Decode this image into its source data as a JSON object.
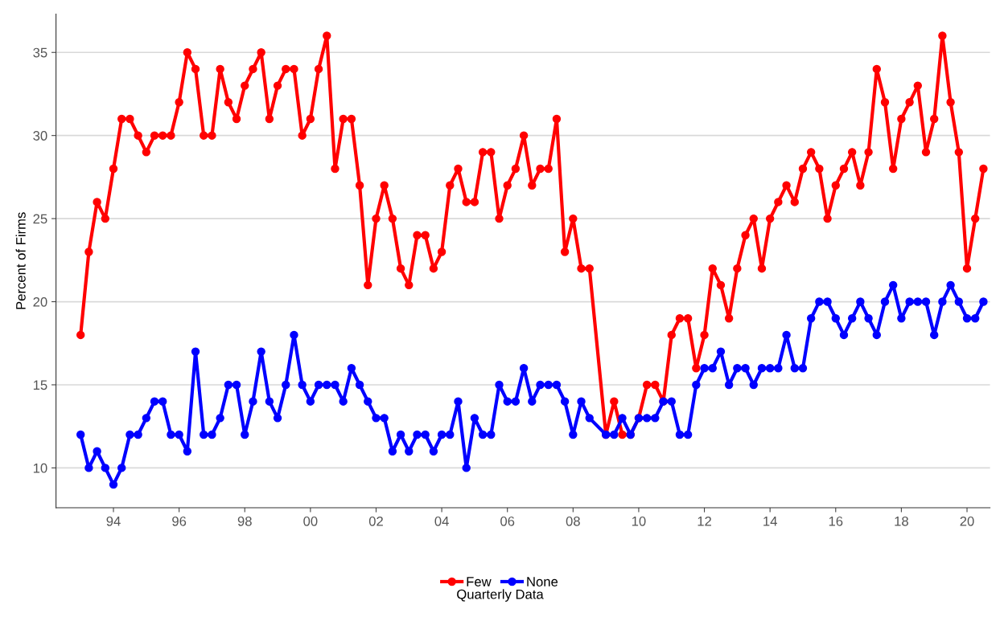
{
  "chart_data": {
    "type": "line",
    "ylabel": "Percent of Firms",
    "annotations": [
      "Quarterly Data"
    ],
    "x": [
      1993,
      1993.25,
      1993.5,
      1993.75,
      1994,
      1994.25,
      1994.5,
      1994.75,
      1995,
      1995.25,
      1995.5,
      1995.75,
      1996,
      1996.25,
      1996.5,
      1996.75,
      1997,
      1997.25,
      1997.5,
      1997.75,
      1998,
      1998.25,
      1998.5,
      1998.75,
      1999,
      1999.25,
      1999.5,
      1999.75,
      2000,
      2000.25,
      2000.5,
      2000.75,
      2001,
      2001.25,
      2001.5,
      2001.75,
      2002,
      2002.25,
      2002.5,
      2002.75,
      2003,
      2003.25,
      2003.5,
      2003.75,
      2004,
      2004.25,
      2004.5,
      2004.75,
      2005,
      2005.25,
      2005.5,
      2005.75,
      2006,
      2006.25,
      2006.5,
      2006.75,
      2007,
      2007.25,
      2007.5,
      2007.75,
      2008,
      2008.25,
      2008.5,
      2009,
      2009.25,
      2009.5,
      2009.75,
      2010,
      2010.25,
      2010.5,
      2010.75,
      2011,
      2011.25,
      2011.5,
      2011.75,
      2012,
      2012.25,
      2012.5,
      2012.75,
      2013,
      2013.25,
      2013.5,
      2013.75,
      2014,
      2014.25,
      2014.5,
      2014.75,
      2015,
      2015.25,
      2015.5,
      2015.75,
      2016,
      2016.25,
      2016.5,
      2016.75,
      2017,
      2017.25,
      2017.5,
      2017.75,
      2018,
      2018.25,
      2018.5,
      2018.75,
      2019,
      2019.25,
      2019.5,
      2019.75,
      2020,
      2020.25,
      2020.5
    ],
    "series": [
      {
        "name": "Few",
        "color": "#ff0000",
        "values": [
          18,
          23,
          26,
          25,
          28,
          31,
          31,
          30,
          29,
          30,
          30,
          30,
          32,
          35,
          34,
          30,
          30,
          34,
          32,
          31,
          33,
          34,
          35,
          31,
          33,
          34,
          34,
          30,
          31,
          34,
          36,
          28,
          31,
          31,
          27,
          21,
          25,
          27,
          25,
          22,
          21,
          24,
          24,
          22,
          23,
          27,
          28,
          26,
          26,
          29,
          29,
          25,
          27,
          28,
          30,
          27,
          28,
          28,
          31,
          23,
          25,
          22,
          22,
          12,
          14,
          12,
          12,
          13,
          15,
          15,
          14,
          18,
          19,
          19,
          16,
          18,
          22,
          21,
          19,
          22,
          24,
          25,
          22,
          25,
          26,
          27,
          26,
          28,
          29,
          28,
          25,
          27,
          28,
          29,
          27,
          29,
          34,
          32,
          28,
          31,
          32,
          33,
          29,
          31,
          36,
          32,
          29,
          22,
          25,
          28
        ]
      },
      {
        "name": "None",
        "color": "#0000ff",
        "values": [
          12,
          10,
          11,
          10,
          9,
          10,
          12,
          12,
          13,
          14,
          14,
          12,
          12,
          11,
          17,
          12,
          12,
          13,
          15,
          15,
          12,
          14,
          17,
          14,
          13,
          15,
          18,
          15,
          14,
          15,
          15,
          15,
          14,
          16,
          15,
          14,
          13,
          13,
          11,
          12,
          11,
          12,
          12,
          11,
          12,
          12,
          14,
          10,
          13,
          12,
          12,
          15,
          14,
          14,
          16,
          14,
          15,
          15,
          15,
          14,
          12,
          14,
          13,
          12,
          12,
          13,
          12,
          13,
          13,
          13,
          14,
          14,
          12,
          12,
          15,
          16,
          16,
          17,
          15,
          16,
          16,
          15,
          16,
          16,
          16,
          18,
          16,
          16,
          19,
          20,
          20,
          19,
          18,
          19,
          20,
          19,
          18,
          20,
          21,
          19,
          20,
          20,
          20,
          18,
          20,
          21,
          20,
          19,
          19,
          20
        ]
      }
    ],
    "xlim": [
      1992.25,
      2020.7
    ],
    "xticks": [
      {
        "value": 1994,
        "label": "94"
      },
      {
        "value": 1996,
        "label": "96"
      },
      {
        "value": 1998,
        "label": "98"
      },
      {
        "value": 2000,
        "label": "00"
      },
      {
        "value": 2002,
        "label": "02"
      },
      {
        "value": 2004,
        "label": "04"
      },
      {
        "value": 2006,
        "label": "06"
      },
      {
        "value": 2008,
        "label": "08"
      },
      {
        "value": 2010,
        "label": "10"
      },
      {
        "value": 2012,
        "label": "12"
      },
      {
        "value": 2014,
        "label": "14"
      },
      {
        "value": 2016,
        "label": "16"
      },
      {
        "value": 2018,
        "label": "18"
      },
      {
        "value": 2020,
        "label": "20"
      }
    ],
    "ylim": [
      7.6,
      37.3
    ],
    "yticks": [
      10,
      15,
      20,
      25,
      30,
      35
    ],
    "grid": "y",
    "legend": "bottom",
    "marker": "circle",
    "line_style": "solid"
  }
}
